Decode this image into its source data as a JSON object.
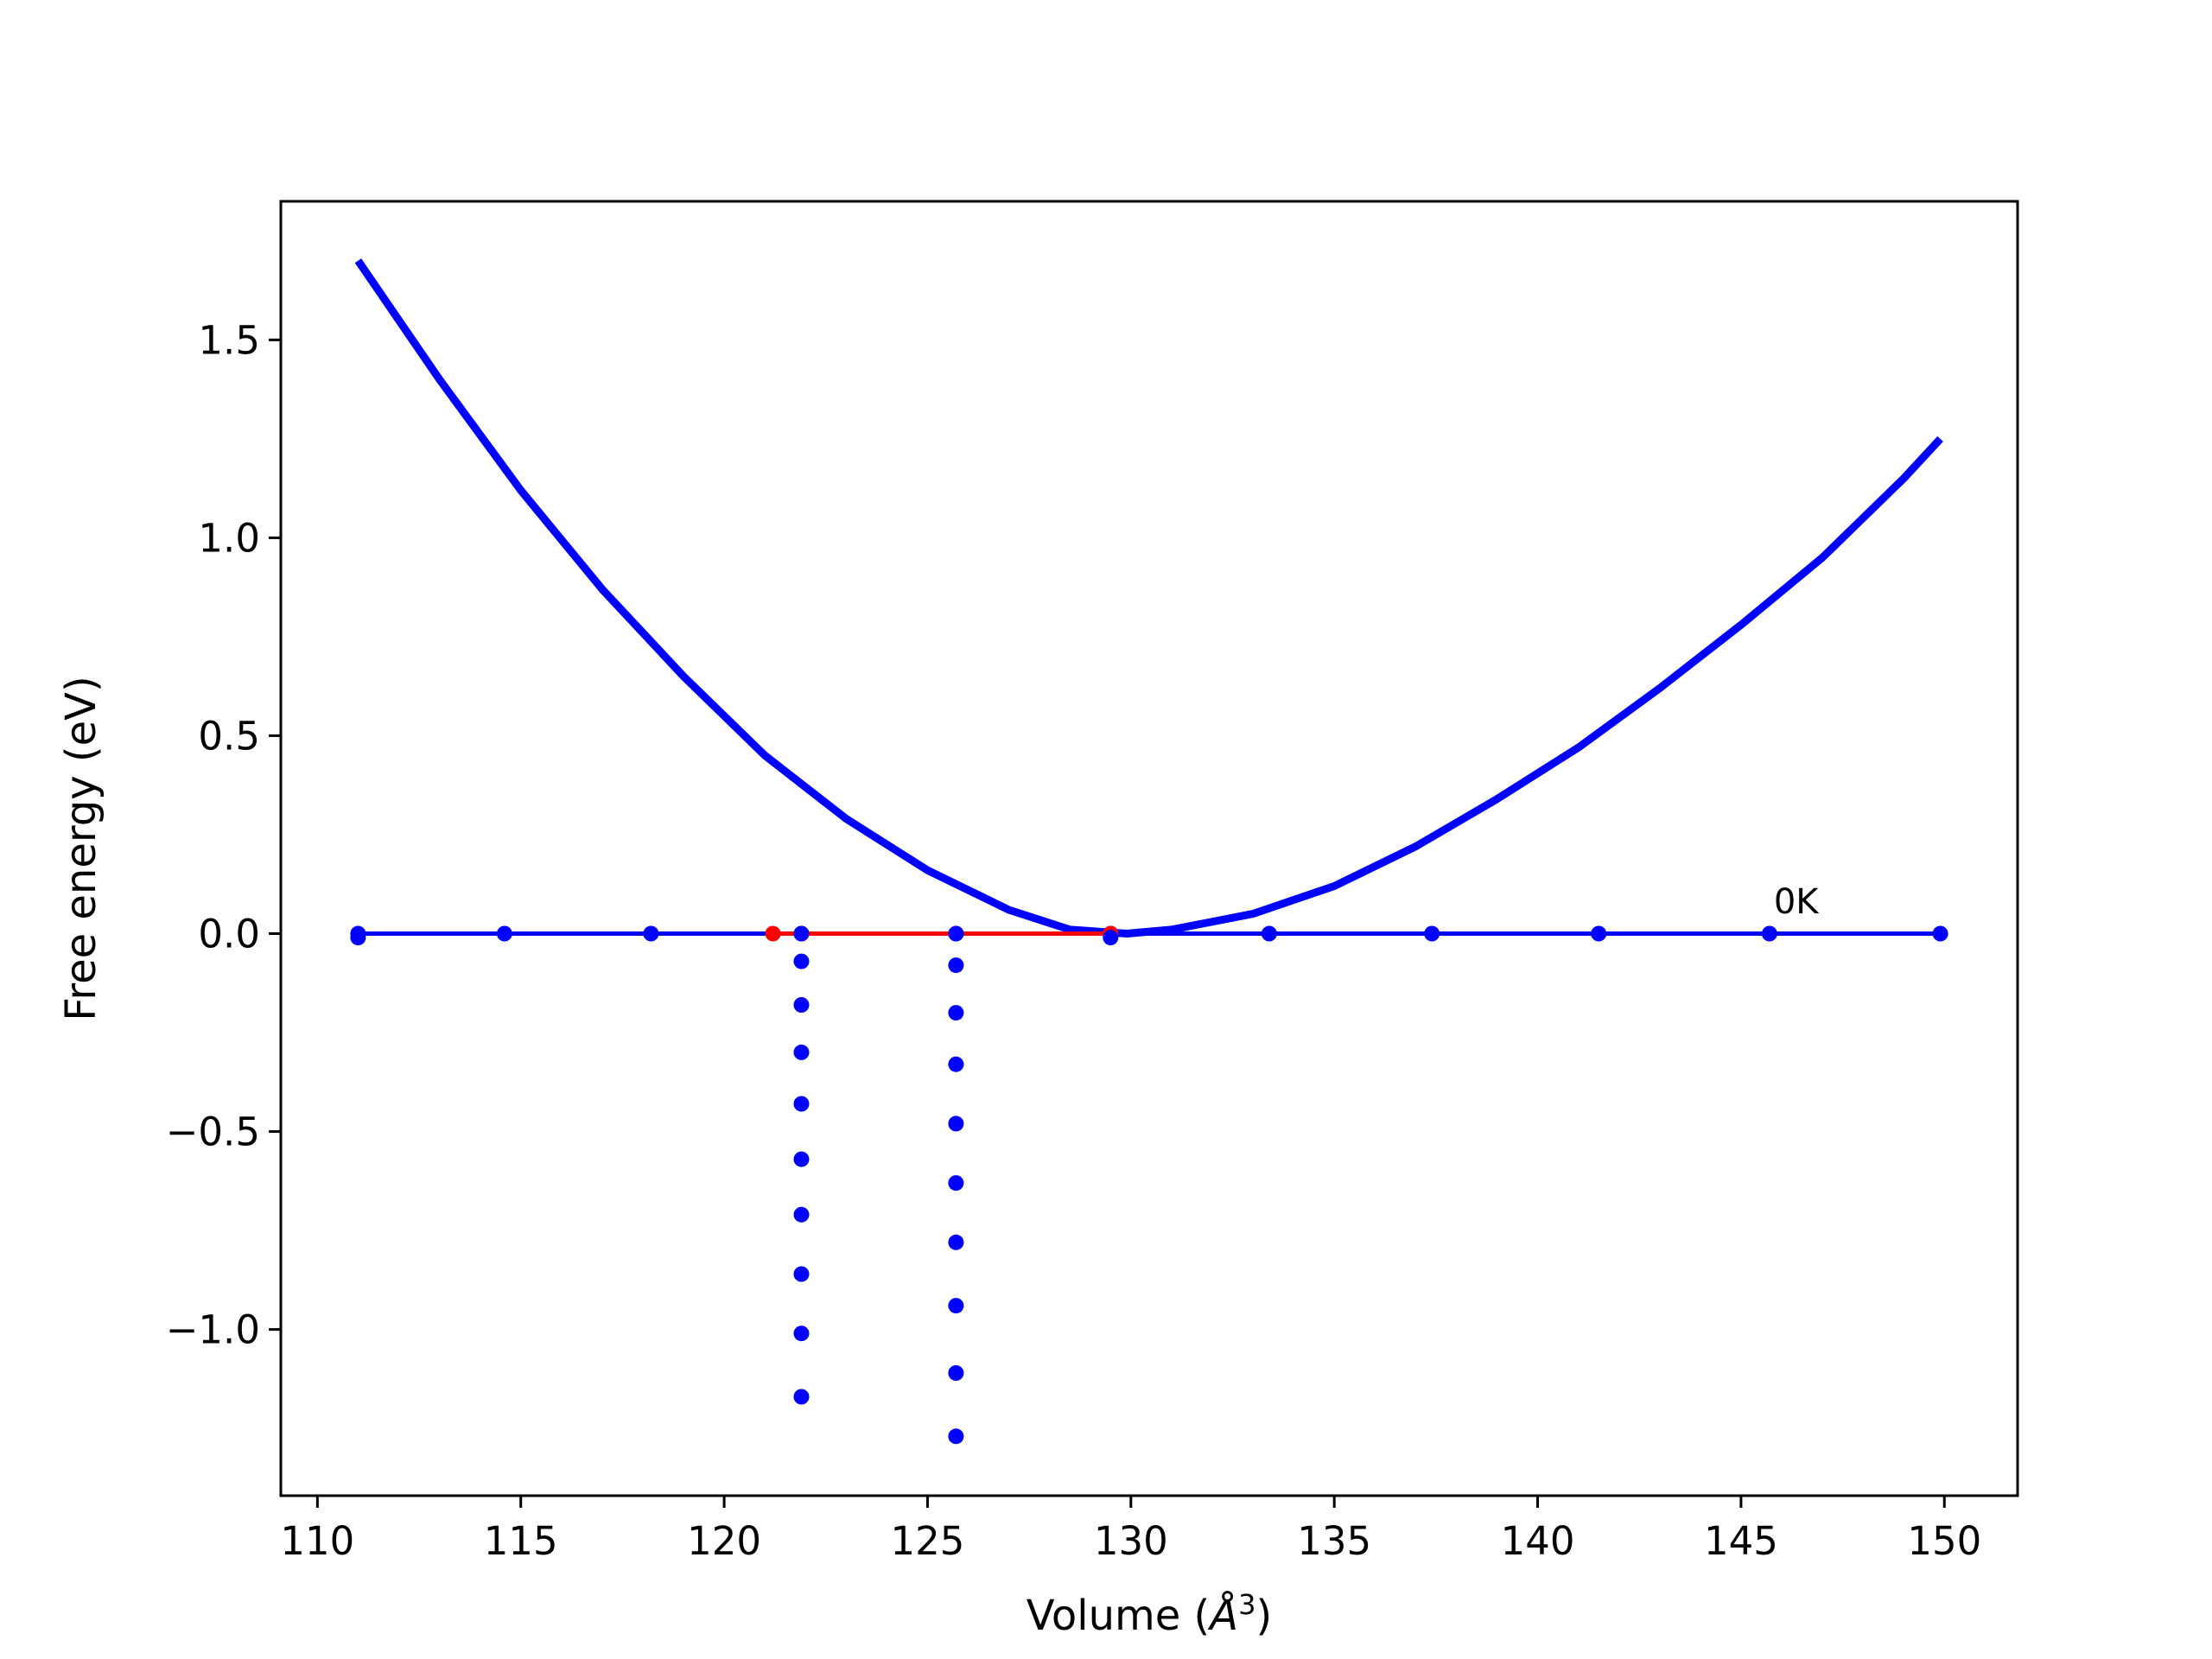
{
  "chart_data": {
    "type": "scatter",
    "title": "",
    "xlabel": "Volume (",
    "xlabel_unit": "Å",
    "xlabel_exp": "3",
    "xlabel_close": ")",
    "ylabel": "Free energy (eV)",
    "xlim": [
      109.1,
      151.8
    ],
    "ylim": [
      -1.42,
      1.85
    ],
    "xticks": [
      110,
      115,
      120,
      125,
      130,
      135,
      140,
      145,
      150
    ],
    "xtick_labels": [
      "110",
      "115",
      "120",
      "125",
      "130",
      "135",
      "140",
      "145",
      "150"
    ],
    "yticks": [
      1.5,
      1.0,
      0.5,
      0.0,
      -0.5,
      -1.0
    ],
    "ytick_labels": [
      "1.5",
      "1.0",
      "0.5",
      "0.0",
      "−0.5",
      "−1.0"
    ],
    "grid": false,
    "legend": "none",
    "colors": {
      "blue": "#0000ff",
      "red": "#ff0000"
    },
    "annotations": [
      {
        "text": "0K",
        "x": 145.7,
        "y": 0.06
      }
    ],
    "series": [
      {
        "style": "fitted-curve",
        "color": "#0000ff",
        "x": [
          111.0,
          113.0,
          115.0,
          117.0,
          119.0,
          121.0,
          123.0,
          125.0,
          127.0,
          128.5,
          129.9,
          131.0,
          133.0,
          135.0,
          137.0,
          139.0,
          141.0,
          143.0,
          145.0,
          147.0,
          149.0,
          149.9
        ],
        "y": [
          1.7,
          1.4,
          1.12,
          0.87,
          0.65,
          0.45,
          0.29,
          0.16,
          0.06,
          0.01,
          0.0,
          0.01,
          0.05,
          0.12,
          0.22,
          0.34,
          0.47,
          0.62,
          0.78,
          0.95,
          1.15,
          1.25
        ]
      },
      {
        "style": "line-with-markers",
        "color": "#0000ff",
        "x": [
          111.0,
          114.6,
          118.2,
          121.9,
          125.7,
          129.5,
          133.4,
          137.4,
          141.5,
          145.7,
          149.9
        ],
        "y": [
          0.0,
          0.0,
          0.0,
          0.0,
          0.0,
          0.0,
          0.0,
          0.0,
          0.0,
          0.0,
          0.0
        ]
      },
      {
        "style": "line-with-markers",
        "color": "#ff0000",
        "x": [
          121.2,
          129.5
        ],
        "y": [
          0.0,
          0.0
        ]
      },
      {
        "style": "markers",
        "color": "#0000ff",
        "x": [
          121.9,
          121.9,
          121.9,
          121.9,
          121.9,
          121.9,
          121.9,
          121.9,
          121.9,
          121.9
        ],
        "y": [
          -0.07,
          -0.18,
          -0.3,
          -0.43,
          -0.57,
          -0.71,
          -0.86,
          -1.01,
          -1.17,
          0.0
        ]
      },
      {
        "style": "markers",
        "color": "#0000ff",
        "x": [
          125.7,
          125.7,
          125.7,
          125.7,
          125.7,
          125.7,
          125.7,
          125.7,
          125.7,
          125.7
        ],
        "y": [
          -0.08,
          -0.2,
          -0.33,
          -0.48,
          -0.63,
          -0.78,
          -0.94,
          -1.11,
          -1.27,
          0.0
        ]
      },
      {
        "style": "markers",
        "color": "#0000ff",
        "x": [
          111.0,
          129.5
        ],
        "y": [
          -0.01,
          -0.01
        ]
      }
    ]
  }
}
